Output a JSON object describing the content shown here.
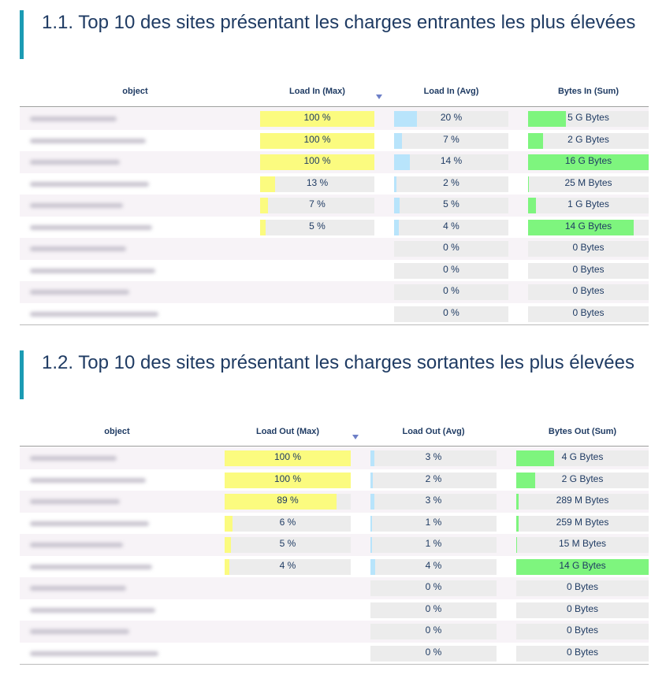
{
  "sections": [
    {
      "title": "1.1. Top 10 des sites présentant les charges entrantes les plus élevées",
      "table": {
        "headers": [
          "object",
          "Load In (Max)",
          "Load In (Avg)",
          "Bytes In (Sum)"
        ],
        "rows": [
          {
            "load_max": {
              "value": 100,
              "label": "100 %"
            },
            "load_avg": {
              "value": 20,
              "label": "20 %"
            },
            "bytes": {
              "value": 5000000000,
              "label": "5 G Bytes"
            }
          },
          {
            "load_max": {
              "value": 100,
              "label": "100 %"
            },
            "load_avg": {
              "value": 7,
              "label": "7 %"
            },
            "bytes": {
              "value": 2000000000,
              "label": "2 G Bytes"
            }
          },
          {
            "load_max": {
              "value": 100,
              "label": "100 %"
            },
            "load_avg": {
              "value": 14,
              "label": "14 %"
            },
            "bytes": {
              "value": 16000000000,
              "label": "16 G Bytes"
            }
          },
          {
            "load_max": {
              "value": 13,
              "label": "13 %"
            },
            "load_avg": {
              "value": 2,
              "label": "2 %"
            },
            "bytes": {
              "value": 25000000,
              "label": "25 M Bytes"
            }
          },
          {
            "load_max": {
              "value": 7,
              "label": "7 %"
            },
            "load_avg": {
              "value": 5,
              "label": "5 %"
            },
            "bytes": {
              "value": 1000000000,
              "label": "1 G Bytes"
            }
          },
          {
            "load_max": {
              "value": 5,
              "label": "5 %"
            },
            "load_avg": {
              "value": 4,
              "label": "4 %"
            },
            "bytes": {
              "value": 14000000000,
              "label": "14 G Bytes"
            }
          },
          {
            "load_max": null,
            "load_avg": {
              "value": 0,
              "label": "0 %"
            },
            "bytes": {
              "value": 0,
              "label": "0 Bytes"
            }
          },
          {
            "load_max": null,
            "load_avg": {
              "value": 0,
              "label": "0 %"
            },
            "bytes": {
              "value": 0,
              "label": "0 Bytes"
            }
          },
          {
            "load_max": null,
            "load_avg": {
              "value": 0,
              "label": "0 %"
            },
            "bytes": {
              "value": 0,
              "label": "0 Bytes"
            }
          },
          {
            "load_max": null,
            "load_avg": {
              "value": 0,
              "label": "0 %"
            },
            "bytes": {
              "value": 0,
              "label": "0 Bytes"
            }
          }
        ]
      }
    },
    {
      "title": "1.2. Top 10 des sites présentant les charges sortantes les plus élevées",
      "table": {
        "headers": [
          "object",
          "Load Out (Max)",
          "Load Out (Avg)",
          "Bytes Out (Sum)"
        ],
        "rows": [
          {
            "load_max": {
              "value": 100,
              "label": "100 %"
            },
            "load_avg": {
              "value": 3,
              "label": "3 %"
            },
            "bytes": {
              "value": 4000000000,
              "label": "4 G Bytes"
            }
          },
          {
            "load_max": {
              "value": 100,
              "label": "100 %"
            },
            "load_avg": {
              "value": 2,
              "label": "2 %"
            },
            "bytes": {
              "value": 2000000000,
              "label": "2 G Bytes"
            }
          },
          {
            "load_max": {
              "value": 89,
              "label": "89 %"
            },
            "load_avg": {
              "value": 3,
              "label": "3 %"
            },
            "bytes": {
              "value": 289000000,
              "label": "289 M Bytes"
            }
          },
          {
            "load_max": {
              "value": 6,
              "label": "6 %"
            },
            "load_avg": {
              "value": 1,
              "label": "1 %"
            },
            "bytes": {
              "value": 259000000,
              "label": "259 M Bytes"
            }
          },
          {
            "load_max": {
              "value": 5,
              "label": "5 %"
            },
            "load_avg": {
              "value": 1,
              "label": "1 %"
            },
            "bytes": {
              "value": 15000000,
              "label": "15 M Bytes"
            }
          },
          {
            "load_max": {
              "value": 4,
              "label": "4 %"
            },
            "load_avg": {
              "value": 4,
              "label": "4 %"
            },
            "bytes": {
              "value": 14000000000,
              "label": "14 G Bytes"
            }
          },
          {
            "load_max": null,
            "load_avg": {
              "value": 0,
              "label": "0 %"
            },
            "bytes": {
              "value": 0,
              "label": "0 Bytes"
            }
          },
          {
            "load_max": null,
            "load_avg": {
              "value": 0,
              "label": "0 %"
            },
            "bytes": {
              "value": 0,
              "label": "0 Bytes"
            }
          },
          {
            "load_max": null,
            "load_avg": {
              "value": 0,
              "label": "0 %"
            },
            "bytes": {
              "value": 0,
              "label": "0 Bytes"
            }
          },
          {
            "load_max": null,
            "load_avg": {
              "value": 0,
              "label": "0 %"
            },
            "bytes": {
              "value": 0,
              "label": "0 Bytes"
            }
          }
        ]
      }
    }
  ]
}
